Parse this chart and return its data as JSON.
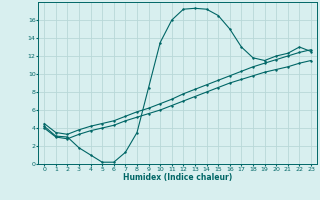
{
  "xlabel": "Humidex (Indice chaleur)",
  "bg_color": "#d8efef",
  "grid_color": "#b8d8d8",
  "line_color": "#006666",
  "xlim": [
    -0.5,
    23.5
  ],
  "ylim": [
    0,
    18
  ],
  "xticks": [
    0,
    1,
    2,
    3,
    4,
    5,
    6,
    7,
    8,
    9,
    10,
    11,
    12,
    13,
    14,
    15,
    16,
    17,
    18,
    19,
    20,
    21,
    22,
    23
  ],
  "yticks": [
    0,
    2,
    4,
    6,
    8,
    10,
    12,
    14,
    16
  ],
  "series1_x": [
    0,
    1,
    2,
    3,
    4,
    5,
    6,
    7,
    8,
    9,
    10,
    11,
    12,
    13,
    14,
    15,
    16,
    17,
    18,
    19,
    20,
    21,
    22,
    23
  ],
  "series1_y": [
    4.2,
    3.1,
    3.0,
    1.8,
    1.0,
    0.2,
    0.2,
    1.3,
    3.5,
    8.5,
    13.5,
    16.0,
    17.2,
    17.3,
    17.2,
    16.5,
    15.0,
    13.0,
    11.8,
    11.5,
    12.0,
    12.3,
    13.0,
    12.5
  ],
  "series2_x": [
    0,
    1,
    2,
    3,
    4,
    5,
    6,
    7,
    8,
    9,
    10,
    11,
    12,
    13,
    14,
    15,
    16,
    17,
    18,
    19,
    20,
    21,
    22,
    23
  ],
  "series2_y": [
    4.5,
    3.5,
    3.3,
    3.8,
    4.2,
    4.5,
    4.8,
    5.3,
    5.8,
    6.2,
    6.7,
    7.2,
    7.8,
    8.3,
    8.8,
    9.3,
    9.8,
    10.3,
    10.8,
    11.2,
    11.6,
    12.0,
    12.4,
    12.7
  ],
  "series3_x": [
    0,
    1,
    2,
    3,
    4,
    5,
    6,
    7,
    8,
    9,
    10,
    11,
    12,
    13,
    14,
    15,
    16,
    17,
    18,
    19,
    20,
    21,
    22,
    23
  ],
  "series3_y": [
    4.0,
    3.0,
    2.8,
    3.3,
    3.7,
    4.0,
    4.3,
    4.8,
    5.2,
    5.6,
    6.0,
    6.5,
    7.0,
    7.5,
    8.0,
    8.5,
    9.0,
    9.4,
    9.8,
    10.2,
    10.5,
    10.8,
    11.2,
    11.5
  ]
}
